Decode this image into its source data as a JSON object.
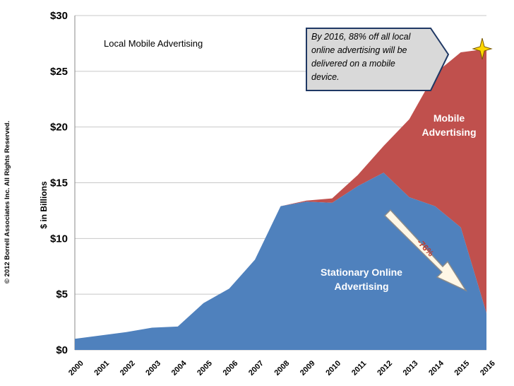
{
  "chart_data": {
    "type": "area",
    "title": "Local Mobile Advertising",
    "ylabel": "$ in Billions",
    "xlabel": "",
    "ylim": [
      0,
      30
    ],
    "yticks": [
      "$0",
      "$5",
      "$10",
      "$15",
      "$20",
      "$25",
      "$30"
    ],
    "ytick_values": [
      0,
      5,
      10,
      15,
      20,
      25,
      30
    ],
    "categories": [
      "2000",
      "2001",
      "2002",
      "2003",
      "2004",
      "2005",
      "2006",
      "2007",
      "2008",
      "2009",
      "2010",
      "2011",
      "2012",
      "2013",
      "2014",
      "2015",
      "2016"
    ],
    "series": [
      {
        "name": "Stationary Online Advertising",
        "color": "#4f81bd",
        "values": [
          1.0,
          1.3,
          1.6,
          2.0,
          2.1,
          4.2,
          5.5,
          8.1,
          12.9,
          13.3,
          13.2,
          14.7,
          15.9,
          13.7,
          12.9,
          11.0,
          3.3
        ]
      },
      {
        "name": "Mobile Advertising",
        "color": "#c0504d",
        "values": [
          0,
          0,
          0,
          0,
          0,
          0,
          0,
          0,
          0,
          0.1,
          0.4,
          1.0,
          2.4,
          7.0,
          11.9,
          15.7,
          23.7
        ]
      }
    ],
    "labels": {
      "mobile_line1": "Mobile",
      "mobile_line2": "Advertising",
      "stationary_line1": "Stationary Online",
      "stationary_line2": "Advertising",
      "decline": "-76%"
    },
    "callout": {
      "line1": "By 2016, 88% off all local",
      "line2": "online advertising will be",
      "line3": "delivered on a  mobile",
      "line4": "device."
    },
    "copyright": "© 2012 Borrell Associates Inc.  All Rights Reserved.",
    "colors": {
      "grid": "#c8c8c8",
      "callout_fill": "#d9d9d9",
      "callout_border": "#1f3864",
      "arrow_fill": "#fff7e6",
      "star": "#ffd700"
    }
  }
}
